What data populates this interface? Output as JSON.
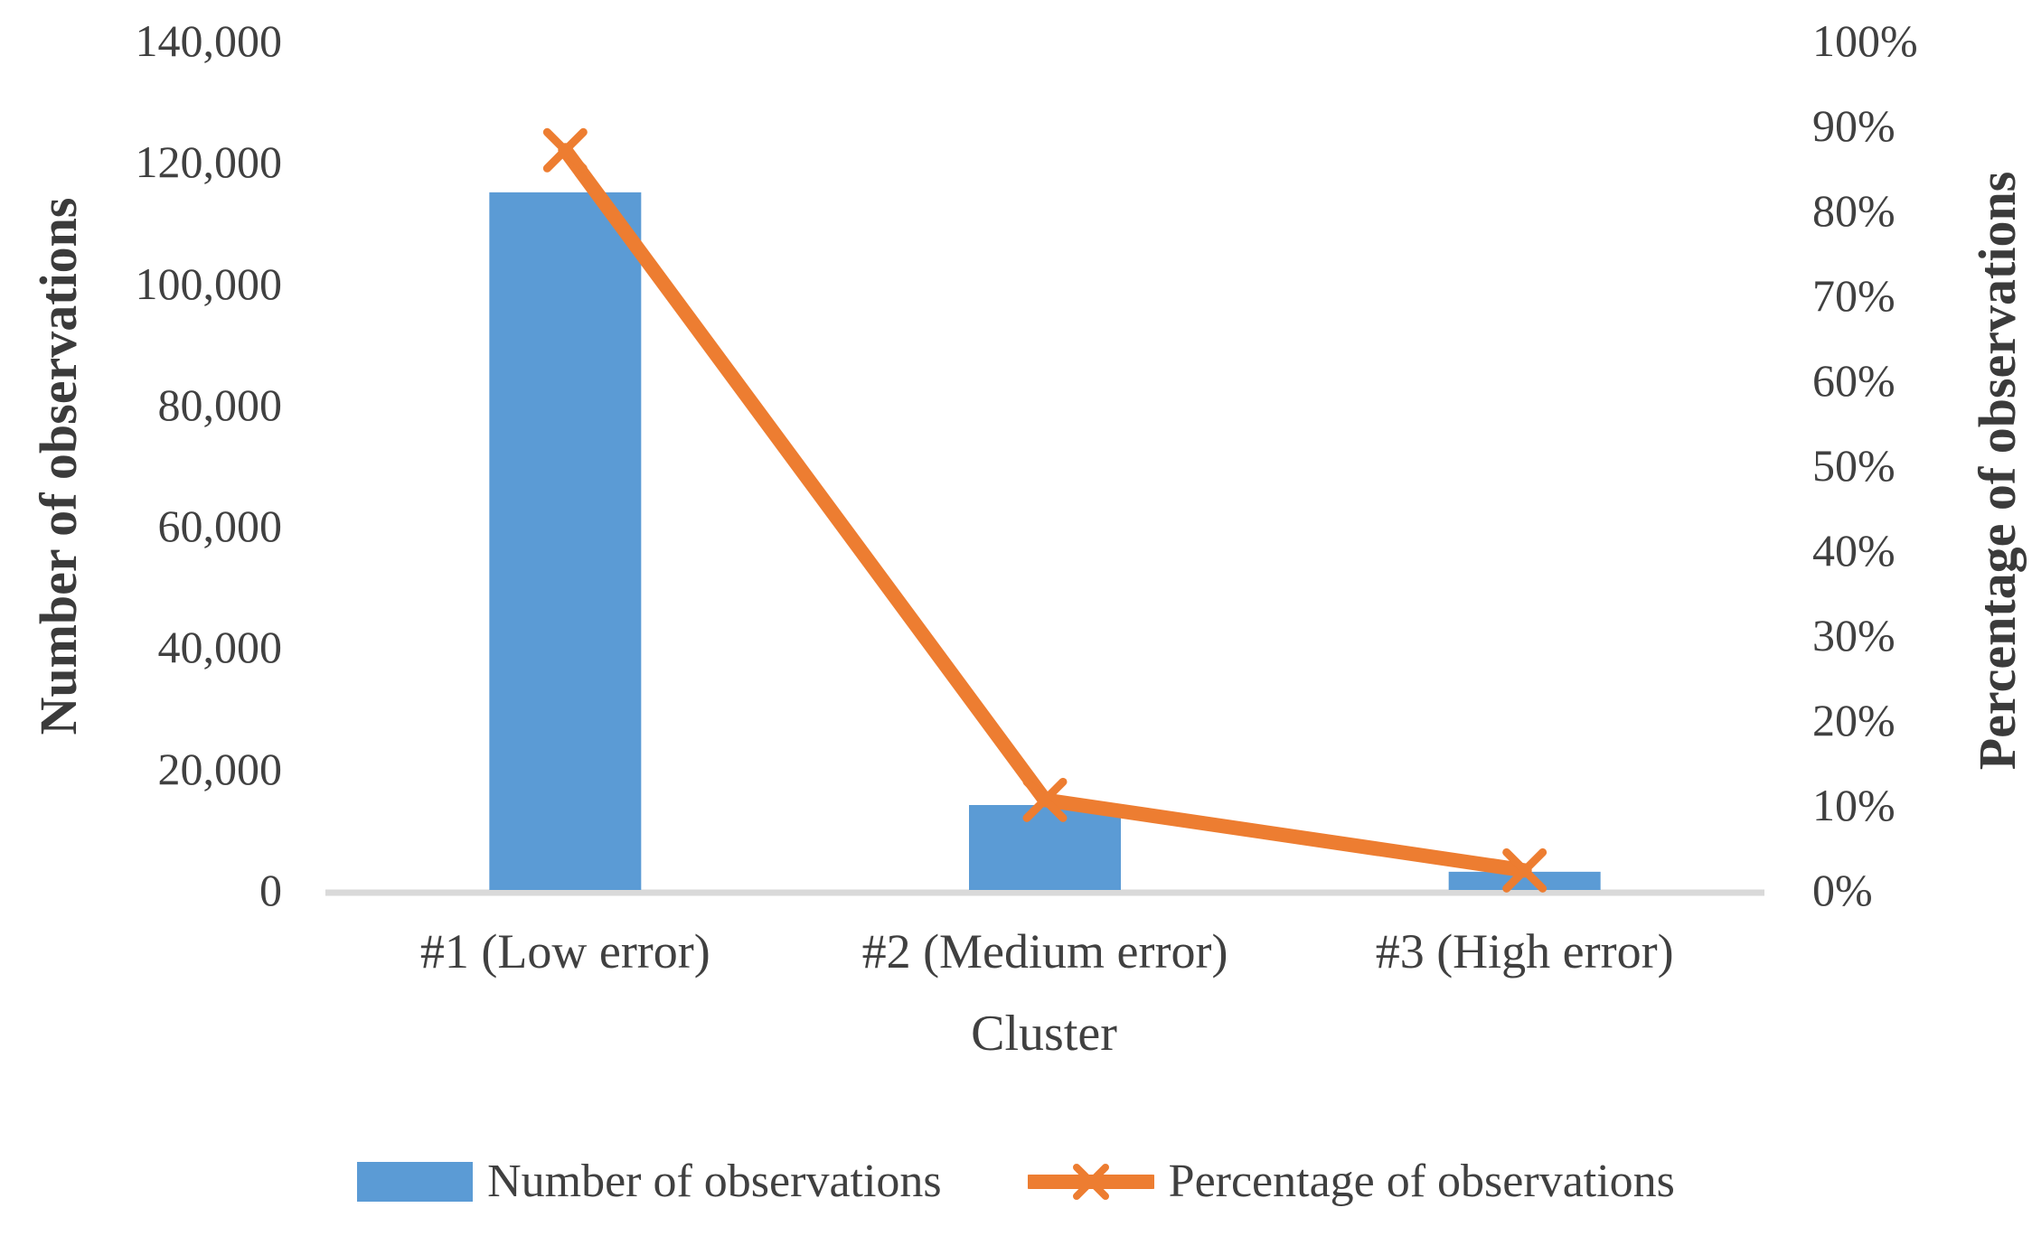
{
  "figure": {
    "background": "#ffffff"
  },
  "chart_data": {
    "type": "combo-bar-line",
    "title": "",
    "categories": [
      "#1 (Low error)",
      "#2 (Medium error)",
      "#3 (High error)"
    ],
    "series": [
      {
        "name": "Number of observations",
        "type": "bar",
        "axis": "left",
        "values": [
          115000,
          14000,
          3000
        ],
        "color": "#5B9BD5"
      },
      {
        "name": "Percentage of observations",
        "type": "line",
        "axis": "right",
        "values": [
          87.1,
          10.6,
          2.3
        ],
        "unit": "%",
        "color": "#ED7D31",
        "marker": "x"
      }
    ],
    "x_axis": {
      "title": "Cluster"
    },
    "left_axis": {
      "title": "Number of observations",
      "min": 0,
      "max": 140000,
      "tick_step": 20000,
      "tick_labels": [
        "0",
        "20,000",
        "40,000",
        "60,000",
        "80,000",
        "100,000",
        "120,000",
        "140,000"
      ]
    },
    "right_axis": {
      "title": "Percentage of observations",
      "min": 0,
      "max": 100,
      "tick_step": 10,
      "tick_labels": [
        "0%",
        "10%",
        "20%",
        "30%",
        "40%",
        "50%",
        "60%",
        "70%",
        "80%",
        "90%",
        "100%"
      ]
    },
    "legend": {
      "position": "bottom",
      "items": [
        "Number of observations",
        "Percentage of observations"
      ]
    },
    "grid": "off",
    "colors": {
      "axis_line": "#D9D9D9",
      "text": "#404040"
    }
  }
}
